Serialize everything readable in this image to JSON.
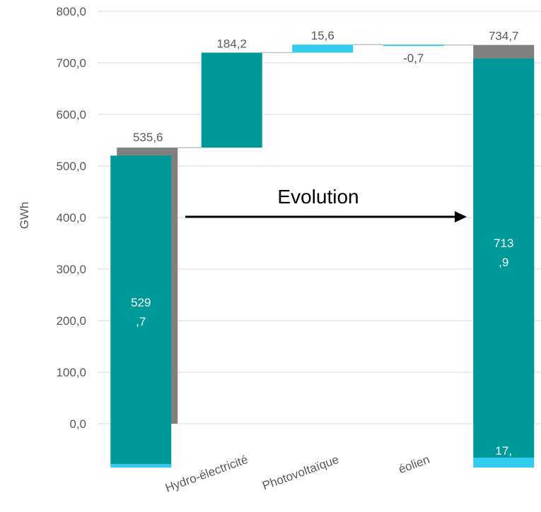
{
  "chart_data": {
    "type": "bar",
    "subtype": "waterfall",
    "ylabel": "GWh",
    "ylim": [
      0,
      800
    ],
    "yticks": [
      "0,0",
      "100,0",
      "200,0",
      "300,0",
      "400,0",
      "500,0",
      "600,0",
      "700,0",
      "800,0"
    ],
    "grid": true,
    "categories": [
      "",
      "Hydro-électricité",
      "Photovoltaïque",
      "éolien",
      ""
    ],
    "totals": [
      {
        "label": "535,6",
        "value": 535.6,
        "inner_value": 529.7,
        "inner_label_l1": "529",
        "inner_label_l2": ",7"
      },
      {
        "label": "734,7",
        "value": 734.7,
        "inner_value": 713.9,
        "inner_label_l1": "713",
        "inner_label_l2": ",9",
        "pv_value": 17,
        "pv_label": "17,"
      }
    ],
    "steps": [
      {
        "label": "184,2",
        "value": 184.2
      },
      {
        "label": "15,6",
        "value": 15.6
      },
      {
        "label": "-0,7",
        "value": -0.7
      }
    ],
    "annotation": "Evolution",
    "colors": {
      "total": "#808080",
      "hydro": "#009999",
      "pv": "#33ccee",
      "grid": "#d9d9d9",
      "text": "#595959"
    }
  }
}
